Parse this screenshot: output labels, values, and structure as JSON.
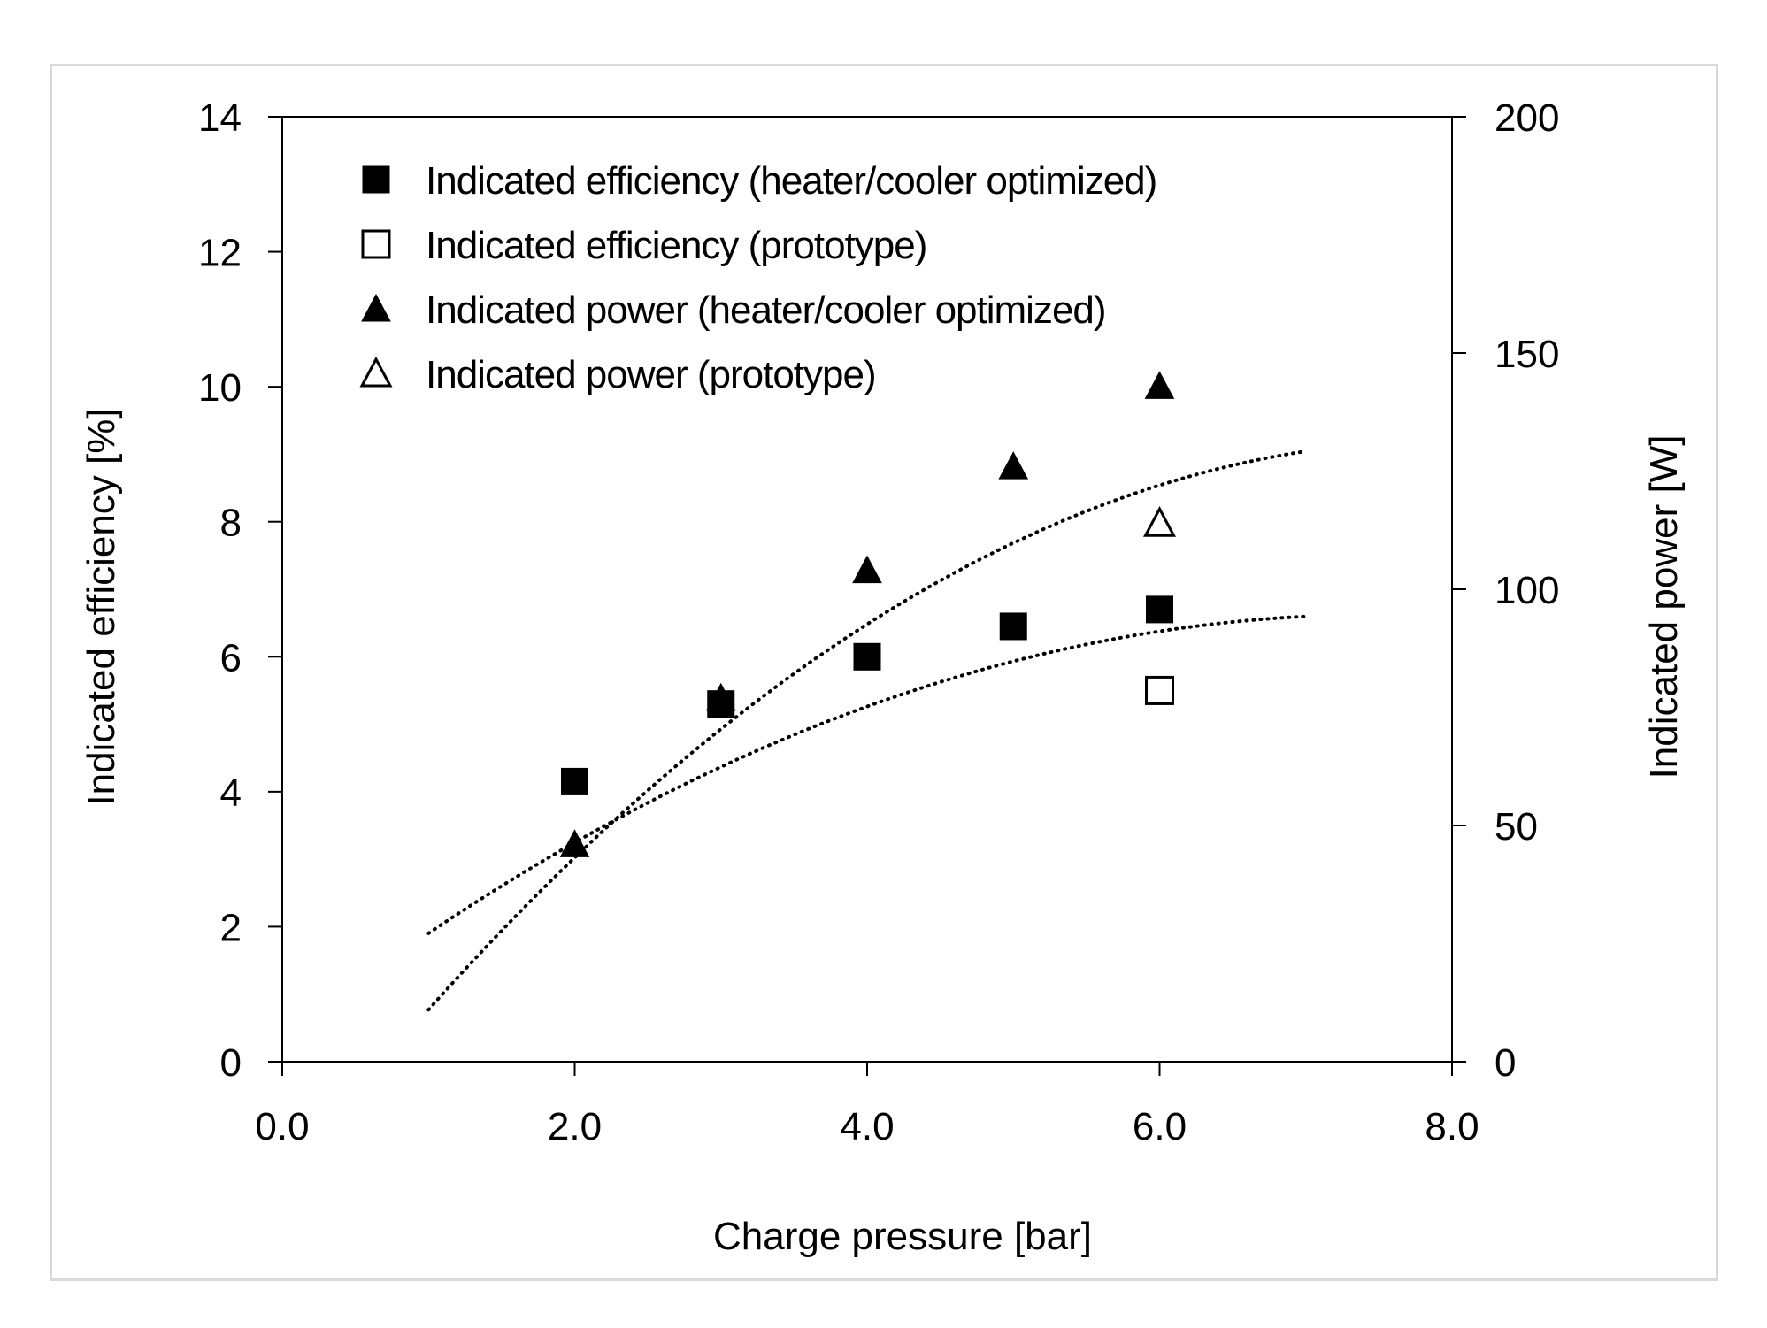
{
  "chart_data": {
    "type": "scatter",
    "title": "",
    "xlabel": "Charge pressure [bar]",
    "ylabel": "Indicated efficiency [%]",
    "y2label": "Indicated power [W]",
    "xlim": [
      0,
      8
    ],
    "ylim": [
      0,
      14
    ],
    "y2lim": [
      0,
      200
    ],
    "xticks": [
      "0.0",
      "2.0",
      "4.0",
      "6.0",
      "8.0"
    ],
    "xtick_values": [
      0,
      2,
      4,
      6,
      8
    ],
    "yticks": [
      "0",
      "2",
      "4",
      "6",
      "8",
      "10",
      "12",
      "14"
    ],
    "ytick_values": [
      0,
      2,
      4,
      6,
      8,
      10,
      12,
      14
    ],
    "y2ticks": [
      "0",
      "50",
      "100",
      "150",
      "200"
    ],
    "y2tick_values": [
      0,
      50,
      100,
      150,
      200
    ],
    "grid": false,
    "legend_position": "top-left",
    "series": [
      {
        "name": "Indicated efficiency (heater/cooler optimized)",
        "axis": "left",
        "marker": "square-filled",
        "x": [
          2,
          3,
          4,
          5,
          6
        ],
        "y": [
          4.15,
          5.3,
          6.0,
          6.45,
          6.7
        ]
      },
      {
        "name": "Indicated efficiency (prototype)",
        "axis": "left",
        "marker": "square-open",
        "x": [
          6
        ],
        "y": [
          5.5
        ]
      },
      {
        "name": "Indicated power (heater/cooler optimized)",
        "axis": "right",
        "marker": "triangle-filled",
        "x": [
          2,
          3,
          4,
          5,
          6
        ],
        "y": [
          46,
          77,
          104,
          126,
          143
        ]
      },
      {
        "name": "Indicated power (prototype)",
        "axis": "right",
        "marker": "triangle-open",
        "x": [
          6
        ],
        "y": [
          114
        ]
      }
    ],
    "trendlines": [
      {
        "name": "efficiency-trend",
        "axis": "left",
        "style": "dotted",
        "x_range": [
          1,
          7
        ],
        "coefficients": [
          -0.1125,
          1.6825,
          0.3325
        ]
      },
      {
        "name": "power-trend",
        "axis": "right",
        "style": "dotted",
        "x_range": [
          1,
          7
        ],
        "coefficients": [
          -2.5,
          39.7,
          -26.2
        ]
      }
    ]
  }
}
